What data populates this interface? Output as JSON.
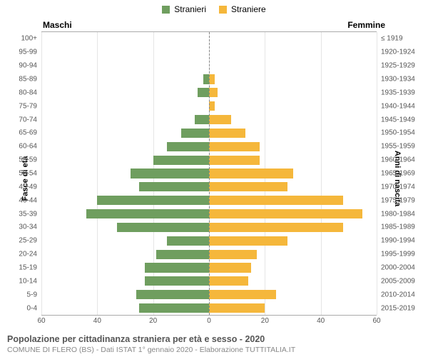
{
  "legend": {
    "male_label": "Stranieri",
    "female_label": "Straniere",
    "male_color": "#6f9e5f",
    "female_color": "#f5b73b"
  },
  "header": {
    "male": "Maschi",
    "female": "Femmine"
  },
  "axis_titles": {
    "left": "Fasce di età",
    "right": "Anni di nascita"
  },
  "chart": {
    "type": "population-pyramid",
    "x_max": 60,
    "x_ticks": [
      60,
      40,
      20,
      0,
      20,
      40,
      60
    ],
    "grid_color": "#e5e5e5",
    "center_line_color": "#888888",
    "background_color": "#ffffff",
    "bar_height_ratio": 0.7,
    "age_bands": [
      {
        "age": "100+",
        "birth": "≤ 1919",
        "male": 0,
        "female": 0
      },
      {
        "age": "95-99",
        "birth": "1920-1924",
        "male": 0,
        "female": 0
      },
      {
        "age": "90-94",
        "birth": "1925-1929",
        "male": 0,
        "female": 0
      },
      {
        "age": "85-89",
        "birth": "1930-1934",
        "male": 2,
        "female": 2
      },
      {
        "age": "80-84",
        "birth": "1935-1939",
        "male": 4,
        "female": 3
      },
      {
        "age": "75-79",
        "birth": "1940-1944",
        "male": 0,
        "female": 2
      },
      {
        "age": "70-74",
        "birth": "1945-1949",
        "male": 5,
        "female": 8
      },
      {
        "age": "65-69",
        "birth": "1950-1954",
        "male": 10,
        "female": 13
      },
      {
        "age": "60-64",
        "birth": "1955-1959",
        "male": 15,
        "female": 18
      },
      {
        "age": "55-59",
        "birth": "1960-1964",
        "male": 20,
        "female": 18
      },
      {
        "age": "50-54",
        "birth": "1965-1969",
        "male": 28,
        "female": 30
      },
      {
        "age": "45-49",
        "birth": "1970-1974",
        "male": 25,
        "female": 28
      },
      {
        "age": "40-44",
        "birth": "1975-1979",
        "male": 40,
        "female": 48
      },
      {
        "age": "35-39",
        "birth": "1980-1984",
        "male": 44,
        "female": 55
      },
      {
        "age": "30-34",
        "birth": "1985-1989",
        "male": 33,
        "female": 48
      },
      {
        "age": "25-29",
        "birth": "1990-1994",
        "male": 15,
        "female": 28
      },
      {
        "age": "20-24",
        "birth": "1995-1999",
        "male": 19,
        "female": 17
      },
      {
        "age": "15-19",
        "birth": "2000-2004",
        "male": 23,
        "female": 15
      },
      {
        "age": "10-14",
        "birth": "2005-2009",
        "male": 23,
        "female": 14
      },
      {
        "age": "5-9",
        "birth": "2010-2014",
        "male": 26,
        "female": 24
      },
      {
        "age": "0-4",
        "birth": "2015-2019",
        "male": 25,
        "female": 20
      }
    ]
  },
  "footer": {
    "title": "Popolazione per cittadinanza straniera per età e sesso - 2020",
    "sub": "COMUNE DI FLERO (BS) - Dati ISTAT 1° gennaio 2020 - Elaborazione TUTTITALIA.IT"
  }
}
